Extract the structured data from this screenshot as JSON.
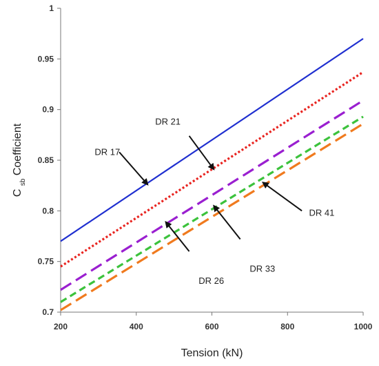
{
  "chart_data": {
    "type": "line",
    "title": "",
    "xlabel": "Tension (kN)",
    "ylabel": {
      "main": "C",
      "subscript": "sb",
      "suffix": " Coefficient"
    },
    "xlim": [
      200,
      1000
    ],
    "ylim": [
      0.7,
      1.0
    ],
    "x_ticks": [
      200,
      400,
      600,
      800,
      1000
    ],
    "x_tick_labels": [
      "200",
      "400",
      "600",
      "800",
      "1000"
    ],
    "y_ticks": [
      0.7,
      0.75,
      0.8,
      0.85,
      0.9,
      0.95,
      1.0
    ],
    "y_tick_labels": [
      "0.7",
      "0.75",
      "0.8",
      "0.85",
      "0.9",
      "0.95",
      "1"
    ],
    "grid": false,
    "series": [
      {
        "name": "DR 17",
        "x": [
          200,
          1000
        ],
        "values": [
          0.77,
          0.97
        ],
        "color": "#1f2fd0",
        "dash": "solid"
      },
      {
        "name": "DR 21",
        "x": [
          200,
          1000
        ],
        "values": [
          0.745,
          0.937
        ],
        "color": "#e8231f",
        "dash": "dotted"
      },
      {
        "name": "DR 26",
        "x": [
          200,
          1000
        ],
        "values": [
          0.722,
          0.909
        ],
        "color": "#9a1fd0",
        "dash": "long-dash"
      },
      {
        "name": "DR 33",
        "x": [
          200,
          1000
        ],
        "values": [
          0.71,
          0.893
        ],
        "color": "#3cc23c",
        "dash": "short-dash"
      },
      {
        "name": "DR 41",
        "x": [
          200,
          1000
        ],
        "values": [
          0.702,
          0.886
        ],
        "color": "#f07a1e",
        "dash": "long-dash"
      }
    ],
    "annotations": [
      {
        "label": "DR 17",
        "text_pos": [
          290,
          0.855
        ],
        "arrow_tail": [
          355,
          0.858
        ],
        "arrow_head": [
          430,
          0.826
        ]
      },
      {
        "label": "DR 21",
        "text_pos": [
          450,
          0.885
        ],
        "arrow_tail": [
          540,
          0.874
        ],
        "arrow_head": [
          605,
          0.841
        ]
      },
      {
        "label": "DR 26",
        "text_pos": [
          565,
          0.728
        ],
        "arrow_tail": [
          540,
          0.76
        ],
        "arrow_head": [
          478,
          0.789
        ]
      },
      {
        "label": "DR 33",
        "text_pos": [
          700,
          0.74
        ],
        "arrow_tail": [
          675,
          0.772
        ],
        "arrow_head": [
          605,
          0.805
        ]
      },
      {
        "label": "DR 41",
        "text_pos": [
          857,
          0.795
        ],
        "arrow_tail": [
          838,
          0.8
        ],
        "arrow_head": [
          735,
          0.828
        ]
      }
    ]
  }
}
